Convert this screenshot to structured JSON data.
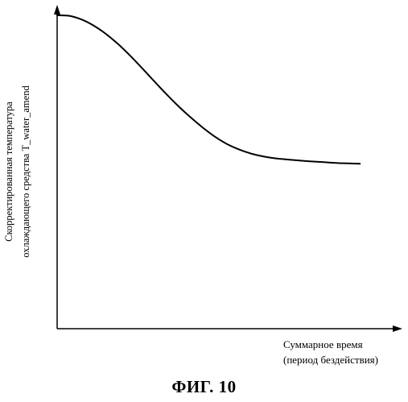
{
  "chart_data": {
    "type": "line",
    "title": "",
    "ylabel_lines": [
      "Скорректированная температура",
      "охлаждающего средства T_water_amend"
    ],
    "xlabel_lines": [
      "Суммарное время",
      "(период бездействия)"
    ],
    "x": [
      0,
      4,
      8,
      12,
      16,
      20,
      24,
      28,
      32,
      36,
      40,
      44,
      48,
      52,
      56,
      60,
      64,
      68,
      72,
      76,
      80,
      84,
      88,
      92,
      96,
      100
    ],
    "series": [
      {
        "values": [
          100,
          99.6,
          97.2,
          93.1,
          87.6,
          80.8,
          73.0,
          64.5,
          55.7,
          47.0,
          38.9,
          31.4,
          24.5,
          18.4,
          13.4,
          9.7,
          6.9,
          5.0,
          3.7,
          2.9,
          2.2,
          1.6,
          1.1,
          0.6,
          0.3,
          0
        ]
      }
    ],
    "xlim": [
      0,
      114
    ],
    "ylim": [
      -111,
      107
    ],
    "grid": false,
    "legend": "none",
    "color": "#000000"
  },
  "figure": {
    "caption": "ФИГ. 10"
  }
}
